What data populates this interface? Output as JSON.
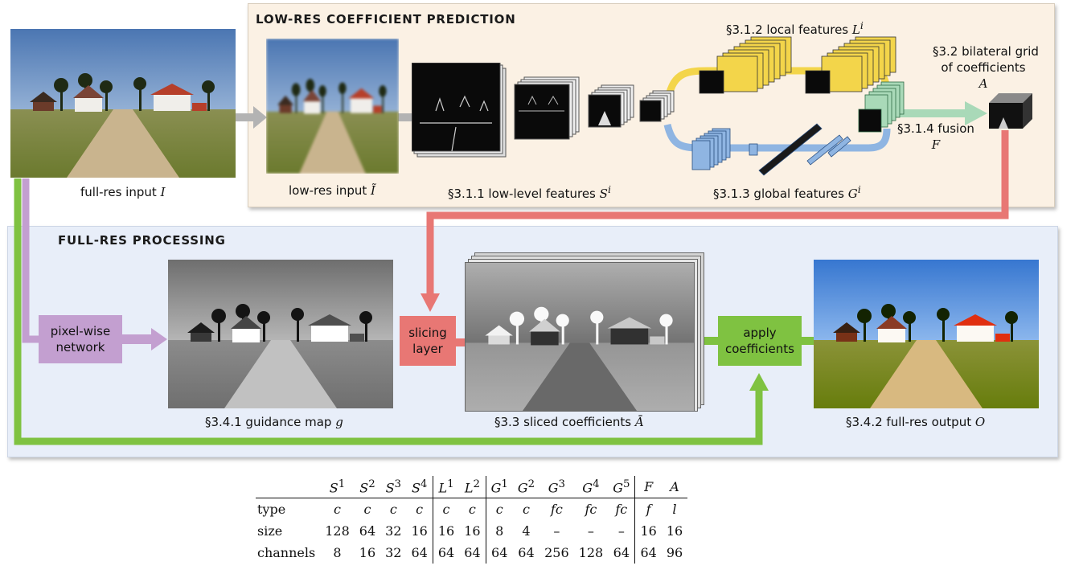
{
  "panels": {
    "low_res_title": "LOW-RES COEFFICIENT PREDICTION",
    "full_res_title": "FULL-RES PROCESSING"
  },
  "captions": {
    "full_res_input": "full-res input",
    "full_res_input_sym": "I",
    "low_res_input": "low-res input",
    "low_res_input_sym": "Ĩ",
    "low_level": "§3.1.1 low-level features",
    "low_level_sym": "S",
    "local": "§3.1.2 local features",
    "local_sym": "L",
    "global": "§3.1.3 global features",
    "global_sym": "G",
    "grid_line1": "§3.2 bilateral grid",
    "grid_line2": "of coefficients",
    "grid_sym": "A",
    "fusion": "§3.1.4 fusion",
    "fusion_sym": "F",
    "guidance": "§3.4.1 guidance map",
    "guidance_sym": "g",
    "sliced": "§3.3 sliced coefficients",
    "sliced_sym": "Ā",
    "output": "§3.4.2 full-res output",
    "output_sym": "O",
    "superscript": "i"
  },
  "blocks": {
    "pixelwise_line1": "pixel-wise",
    "pixelwise_line2": "network",
    "slicing_line1": "slicing",
    "slicing_line2": "layer",
    "apply_line1": "apply",
    "apply_line2": "coefficients"
  },
  "colors": {
    "purple": "#c39fd0",
    "green": "#7fc241",
    "red": "#e87774",
    "yellow": "#f3d54a",
    "blue": "#8fb5e2",
    "mint": "#a9d9b8",
    "gray": "#b3b3b3"
  },
  "table": {
    "columns": [
      "S1",
      "S2",
      "S3",
      "S4",
      "L1",
      "L2",
      "G1",
      "G2",
      "G3",
      "G4",
      "G5",
      "F",
      "A"
    ],
    "column_bases": [
      "S",
      "S",
      "S",
      "S",
      "L",
      "L",
      "G",
      "G",
      "G",
      "G",
      "G",
      "F",
      "A"
    ],
    "column_sups": [
      "1",
      "2",
      "3",
      "4",
      "1",
      "2",
      "1",
      "2",
      "3",
      "4",
      "5",
      "",
      ""
    ],
    "rows": [
      {
        "label": "type",
        "values": [
          "c",
          "c",
          "c",
          "c",
          "c",
          "c",
          "c",
          "c",
          "fc",
          "fc",
          "fc",
          "f",
          "l"
        ]
      },
      {
        "label": "size",
        "values": [
          "128",
          "64",
          "32",
          "16",
          "16",
          "16",
          "8",
          "4",
          "–",
          "–",
          "–",
          "16",
          "16"
        ]
      },
      {
        "label": "channels",
        "values": [
          "8",
          "16",
          "32",
          "64",
          "64",
          "64",
          "64",
          "64",
          "256",
          "128",
          "64",
          "64",
          "96"
        ]
      }
    ]
  }
}
